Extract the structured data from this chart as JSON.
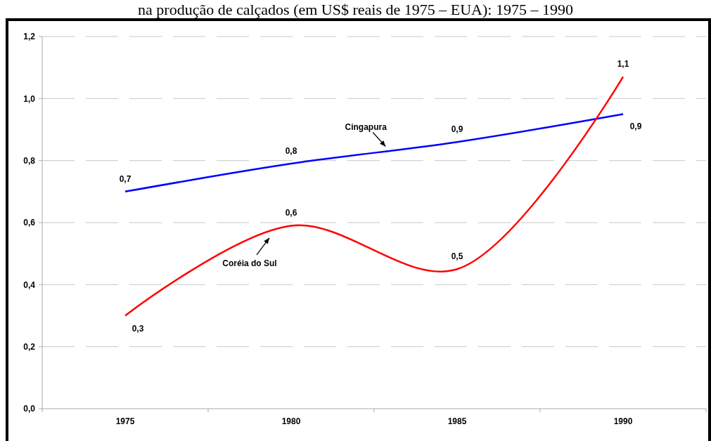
{
  "chart_data": {
    "type": "line",
    "title": "na produção de calçados (em US$ reais de 1975 – EUA): 1975 – 1990",
    "categories": [
      "1975",
      "1980",
      "1985",
      "1990"
    ],
    "series": [
      {
        "name": "Cingapura",
        "color": "#0000ff",
        "values": [
          0.7,
          0.79,
          0.86,
          0.95
        ],
        "value_labels": [
          "0,7",
          "0,8",
          "0,9",
          "0,9"
        ]
      },
      {
        "name": "Coréia do Sul",
        "color": "#ff0000",
        "values": [
          0.3,
          0.59,
          0.45,
          1.07
        ],
        "value_labels": [
          "0,3",
          "0,6",
          "0,5",
          "1,1"
        ]
      }
    ],
    "ylim": [
      0,
      1.2
    ],
    "yticks": [
      {
        "value": 0,
        "label": "0,0"
      },
      {
        "value": 0.2,
        "label": "0,2"
      },
      {
        "value": 0.4,
        "label": "0,4"
      },
      {
        "value": 0.6,
        "label": "0,6"
      },
      {
        "value": 0.8,
        "label": "0,8"
      },
      {
        "value": 1.0,
        "label": "1,0"
      },
      {
        "value": 1.2,
        "label": "1,2"
      }
    ],
    "grid": "y",
    "line_style": "solid"
  }
}
